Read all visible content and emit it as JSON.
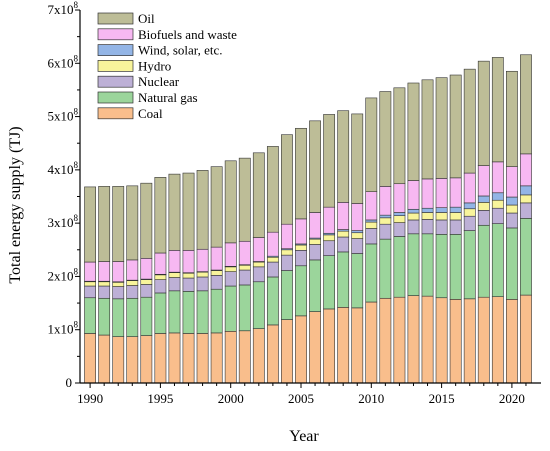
{
  "chart_data": {
    "type": "bar",
    "stacked": true,
    "xlabel": "Year",
    "ylabel": "Total energy supply (TJ)",
    "ylim": [
      0,
      700000000
    ],
    "y_ticks": [
      {
        "value": 0,
        "base": "0",
        "exp": ""
      },
      {
        "value": 100000000,
        "base": "1x10",
        "exp": "8"
      },
      {
        "value": 200000000,
        "base": "2x10",
        "exp": "8"
      },
      {
        "value": 300000000,
        "base": "3x10",
        "exp": "8"
      },
      {
        "value": 400000000,
        "base": "4x10",
        "exp": "8"
      },
      {
        "value": 500000000,
        "base": "5x10",
        "exp": "8"
      },
      {
        "value": 600000000,
        "base": "6x10",
        "exp": "8"
      },
      {
        "value": 700000000,
        "base": "7x10",
        "exp": "8"
      }
    ],
    "x_ticks": [
      "1990",
      "1995",
      "2000",
      "2005",
      "2010",
      "2015",
      "2020"
    ],
    "grid": false,
    "legend_position": "top-left",
    "categories": [
      "1990",
      "1991",
      "1992",
      "1993",
      "1994",
      "1995",
      "1996",
      "1997",
      "1998",
      "1999",
      "2000",
      "2001",
      "2002",
      "2003",
      "2004",
      "2005",
      "2006",
      "2007",
      "2008",
      "2009",
      "2010",
      "2011",
      "2012",
      "2013",
      "2014",
      "2015",
      "2016",
      "2017",
      "2018",
      "2019",
      "2020",
      "2021"
    ],
    "series": [
      {
        "name": "Coal",
        "color": "#F9BE8C",
        "values": [
          93000000,
          90000000,
          87000000,
          87000000,
          89000000,
          93000000,
          94000000,
          93000000,
          93000000,
          94000000,
          97000000,
          98000000,
          102000000,
          109000000,
          119000000,
          126000000,
          134000000,
          139000000,
          142000000,
          141000000,
          152000000,
          159000000,
          161000000,
          164000000,
          163000000,
          160000000,
          157000000,
          158000000,
          161000000,
          162000000,
          157000000,
          165000000
        ]
      },
      {
        "name": "Natural gas",
        "color": "#9BD59B",
        "values": [
          67000000,
          69000000,
          71000000,
          72000000,
          72000000,
          76000000,
          79000000,
          79000000,
          80000000,
          82000000,
          85000000,
          86000000,
          88000000,
          90000000,
          92000000,
          94000000,
          97000000,
          100000000,
          104000000,
          102000000,
          109000000,
          111000000,
          114000000,
          116000000,
          117000000,
          119000000,
          122000000,
          128000000,
          135000000,
          137000000,
          134000000,
          144000000
        ]
      },
      {
        "name": "Nuclear",
        "color": "#BDB0D6",
        "values": [
          22000000,
          23000000,
          23000000,
          24000000,
          24000000,
          25000000,
          25000000,
          25000000,
          26000000,
          26000000,
          27000000,
          28000000,
          28000000,
          28000000,
          29000000,
          29000000,
          29000000,
          28000000,
          28000000,
          28000000,
          29000000,
          28000000,
          26000000,
          26000000,
          27000000,
          27000000,
          27000000,
          27000000,
          28000000,
          29000000,
          28000000,
          29000000
        ]
      },
      {
        "name": "Hydro",
        "color": "#F8F49B",
        "values": [
          8000000,
          8000000,
          8000000,
          9000000,
          9000000,
          9000000,
          9000000,
          9000000,
          9000000,
          9000000,
          9000000,
          9000000,
          9000000,
          9000000,
          10000000,
          10000000,
          10000000,
          11000000,
          11000000,
          11000000,
          12000000,
          12000000,
          13000000,
          13000000,
          13000000,
          14000000,
          14000000,
          14000000,
          15000000,
          15000000,
          15000000,
          15000000
        ]
      },
      {
        "name": "Wind, solar, etc.",
        "color": "#93B5E6",
        "values": [
          1000000,
          1000000,
          1000000,
          1000000,
          1000000,
          1000000,
          1000000,
          1000000,
          1000000,
          1000000,
          1000000,
          1000000,
          1000000,
          2000000,
          2000000,
          2000000,
          2000000,
          3000000,
          3000000,
          4000000,
          4000000,
          5000000,
          6000000,
          7000000,
          8000000,
          9000000,
          10000000,
          11000000,
          12000000,
          14000000,
          15000000,
          17000000
        ]
      },
      {
        "name": "Biofuels and waste",
        "color": "#F7B8F2",
        "values": [
          36000000,
          37000000,
          38000000,
          38000000,
          39000000,
          40000000,
          41000000,
          42000000,
          42000000,
          43000000,
          44000000,
          44000000,
          45000000,
          45000000,
          46000000,
          47000000,
          48000000,
          49000000,
          51000000,
          51000000,
          53000000,
          54000000,
          54000000,
          54000000,
          55000000,
          55000000,
          55000000,
          56000000,
          57000000,
          58000000,
          57000000,
          60000000
        ]
      },
      {
        "name": "Oil",
        "color": "#BDBD97",
        "values": [
          141000000,
          141000000,
          141000000,
          139000000,
          141000000,
          142000000,
          143000000,
          145000000,
          148000000,
          151000000,
          154000000,
          156000000,
          159000000,
          161000000,
          168000000,
          170000000,
          172000000,
          174000000,
          172000000,
          168000000,
          176000000,
          178000000,
          180000000,
          183000000,
          186000000,
          189000000,
          193000000,
          195000000,
          196000000,
          196000000,
          179000000,
          186000000
        ]
      }
    ]
  }
}
